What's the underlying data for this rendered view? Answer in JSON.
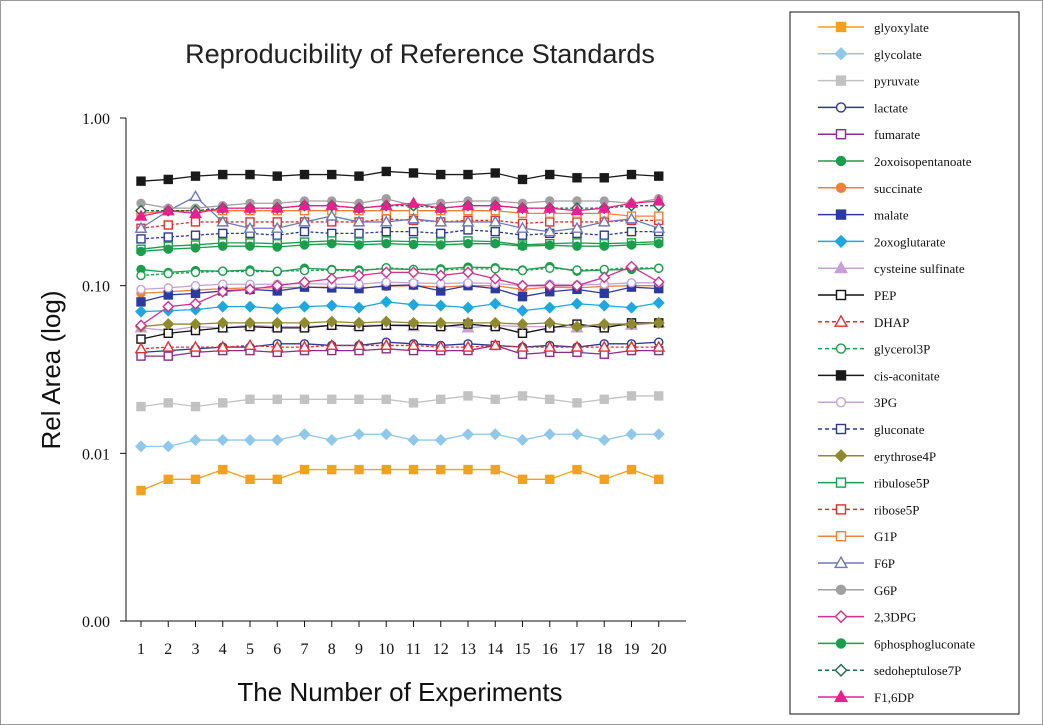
{
  "chart_data": {
    "type": "line",
    "title": "Reproducibility of Reference Standards",
    "xlabel": "The Number of Experiments",
    "ylabel": "Rel Area (log)",
    "y_scale": "log",
    "ylim": [
      0.001,
      1
    ],
    "y_ticks": [
      {
        "value": 1,
        "label": "1.00"
      },
      {
        "value": 0.1,
        "label": "0.10"
      },
      {
        "value": 0.01,
        "label": "0.01"
      },
      {
        "value": 0.001,
        "label": "0.00"
      }
    ],
    "x": [
      1,
      2,
      3,
      4,
      5,
      6,
      7,
      8,
      9,
      10,
      11,
      12,
      13,
      14,
      15,
      16,
      17,
      18,
      19,
      20
    ],
    "x_tick_labels": [
      "1",
      "2",
      "3",
      "4",
      "5",
      "6",
      "7",
      "8",
      "9",
      "10",
      "11",
      "12",
      "13",
      "14",
      "15",
      "16",
      "17",
      "18",
      "19",
      "20"
    ],
    "grid": false,
    "legend_position": "right",
    "series": [
      {
        "name": "glyoxylate",
        "color": "#f4a11f",
        "marker": "square",
        "filled": true,
        "dash": false,
        "values": [
          0.006,
          0.007,
          0.007,
          0.008,
          0.007,
          0.007,
          0.008,
          0.008,
          0.008,
          0.008,
          0.008,
          0.008,
          0.008,
          0.008,
          0.007,
          0.007,
          0.008,
          0.007,
          0.008,
          0.007
        ]
      },
      {
        "name": "glycolate",
        "color": "#8fc8ea",
        "marker": "diamond",
        "filled": true,
        "dash": false,
        "values": [
          0.011,
          0.011,
          0.012,
          0.012,
          0.012,
          0.012,
          0.013,
          0.012,
          0.013,
          0.013,
          0.012,
          0.012,
          0.013,
          0.013,
          0.012,
          0.013,
          0.013,
          0.012,
          0.013,
          0.013
        ]
      },
      {
        "name": "pyruvate",
        "color": "#c2c2c2",
        "marker": "square",
        "filled": true,
        "dash": false,
        "values": [
          0.019,
          0.02,
          0.019,
          0.02,
          0.021,
          0.021,
          0.021,
          0.021,
          0.021,
          0.021,
          0.02,
          0.021,
          0.022,
          0.021,
          0.022,
          0.021,
          0.02,
          0.021,
          0.022,
          0.022
        ]
      },
      {
        "name": "lactate",
        "color": "#2b3990",
        "marker": "circle",
        "filled": false,
        "dash": false,
        "values": [
          0.04,
          0.041,
          0.042,
          0.043,
          0.043,
          0.045,
          0.045,
          0.044,
          0.044,
          0.046,
          0.045,
          0.044,
          0.045,
          0.044,
          0.043,
          0.044,
          0.043,
          0.045,
          0.045,
          0.046
        ]
      },
      {
        "name": "fumarate",
        "color": "#8b2b8b",
        "marker": "square",
        "filled": false,
        "dash": false,
        "values": [
          0.038,
          0.038,
          0.04,
          0.041,
          0.041,
          0.04,
          0.041,
          0.041,
          0.041,
          0.042,
          0.041,
          0.041,
          0.041,
          0.044,
          0.039,
          0.04,
          0.04,
          0.039,
          0.041,
          0.041
        ]
      },
      {
        "name": "2oxoisopentanoate",
        "color": "#1b9e4b",
        "marker": "circle",
        "filled": true,
        "dash": false,
        "values": [
          0.125,
          0.12,
          0.123,
          0.122,
          0.124,
          0.121,
          0.127,
          0.125,
          0.124,
          0.126,
          0.125,
          0.126,
          0.129,
          0.128,
          0.124,
          0.13,
          0.122,
          0.124,
          0.125,
          0.127
        ]
      },
      {
        "name": "succinate",
        "color": "#f1813a",
        "marker": "circle",
        "filled": true,
        "dash": false,
        "values": [
          0.09,
          0.092,
          0.094,
          0.096,
          0.097,
          0.097,
          0.098,
          0.098,
          0.097,
          0.099,
          0.1,
          0.098,
          0.1,
          0.1,
          0.095,
          0.098,
          0.097,
          0.099,
          0.1,
          0.1
        ]
      },
      {
        "name": "malate",
        "color": "#2b3a9e",
        "marker": "square",
        "filled": true,
        "dash": false,
        "values": [
          0.08,
          0.088,
          0.09,
          0.093,
          0.095,
          0.093,
          0.098,
          0.097,
          0.096,
          0.1,
          0.101,
          0.093,
          0.1,
          0.096,
          0.086,
          0.092,
          0.095,
          0.09,
          0.098,
          0.096
        ]
      },
      {
        "name": "2oxoglutarate",
        "color": "#1ea7e0",
        "marker": "diamond",
        "filled": true,
        "dash": false,
        "values": [
          0.07,
          0.071,
          0.072,
          0.075,
          0.075,
          0.073,
          0.075,
          0.076,
          0.074,
          0.08,
          0.077,
          0.076,
          0.074,
          0.078,
          0.071,
          0.074,
          0.078,
          0.076,
          0.074,
          0.079
        ]
      },
      {
        "name": "cysteine sulfinate",
        "color": "#c7a0d6",
        "marker": "triangle",
        "filled": true,
        "dash": false,
        "values": [
          0.056,
          0.054,
          0.057,
          0.056,
          0.058,
          0.057,
          0.057,
          0.058,
          0.058,
          0.058,
          0.057,
          0.058,
          0.056,
          0.058,
          0.057,
          0.057,
          0.056,
          0.058,
          0.058,
          0.06
        ]
      },
      {
        "name": "PEP",
        "color": "#111111",
        "marker": "square",
        "filled": false,
        "dash": false,
        "values": [
          0.048,
          0.052,
          0.054,
          0.056,
          0.057,
          0.056,
          0.056,
          0.058,
          0.057,
          0.058,
          0.058,
          0.057,
          0.059,
          0.057,
          0.052,
          0.056,
          0.059,
          0.056,
          0.06,
          0.06
        ]
      },
      {
        "name": "DHAP",
        "color": "#e52d2d",
        "marker": "triangle",
        "filled": false,
        "dash": true,
        "values": [
          0.042,
          0.043,
          0.043,
          0.043,
          0.044,
          0.043,
          0.043,
          0.044,
          0.044,
          0.044,
          0.044,
          0.043,
          0.043,
          0.044,
          0.043,
          0.043,
          0.043,
          0.043,
          0.043,
          0.043
        ]
      },
      {
        "name": "glycerol3P",
        "color": "#1b9e4b",
        "marker": "circle",
        "filled": false,
        "dash": true,
        "values": [
          0.115,
          0.118,
          0.12,
          0.122,
          0.121,
          0.122,
          0.123,
          0.124,
          0.122,
          0.128,
          0.125,
          0.124,
          0.126,
          0.126,
          0.123,
          0.127,
          0.124,
          0.125,
          0.128,
          0.127
        ]
      },
      {
        "name": "cis-aconitate",
        "color": "#1a1a1a",
        "marker": "square",
        "filled": true,
        "dash": false,
        "values": [
          0.42,
          0.43,
          0.45,
          0.46,
          0.46,
          0.45,
          0.46,
          0.46,
          0.45,
          0.48,
          0.47,
          0.46,
          0.46,
          0.47,
          0.43,
          0.46,
          0.44,
          0.44,
          0.46,
          0.45
        ]
      },
      {
        "name": "3PG",
        "color": "#c4a3d8",
        "marker": "circle",
        "filled": false,
        "dash": false,
        "values": [
          0.095,
          0.097,
          0.1,
          0.102,
          0.102,
          0.102,
          0.103,
          0.102,
          0.102,
          0.105,
          0.104,
          0.103,
          0.104,
          0.103,
          0.1,
          0.102,
          0.101,
          0.102,
          0.104,
          0.104
        ]
      },
      {
        "name": "gluconate",
        "color": "#2b3990",
        "marker": "square",
        "filled": false,
        "dash": true,
        "values": [
          0.19,
          0.195,
          0.2,
          0.205,
          0.205,
          0.2,
          0.21,
          0.205,
          0.205,
          0.21,
          0.21,
          0.205,
          0.215,
          0.21,
          0.2,
          0.205,
          0.205,
          0.2,
          0.21,
          0.21
        ]
      },
      {
        "name": "erythrose4P",
        "color": "#8f8a2e",
        "marker": "diamond",
        "filled": true,
        "dash": false,
        "values": [
          0.057,
          0.059,
          0.059,
          0.06,
          0.06,
          0.06,
          0.06,
          0.061,
          0.06,
          0.061,
          0.06,
          0.06,
          0.06,
          0.06,
          0.059,
          0.06,
          0.057,
          0.059,
          0.059,
          0.06
        ]
      },
      {
        "name": "ribulose5P",
        "color": "#1b9e4b",
        "marker": "square",
        "filled": false,
        "dash": false,
        "values": [
          0.165,
          0.172,
          0.175,
          0.18,
          0.18,
          0.178,
          0.182,
          0.185,
          0.182,
          0.185,
          0.183,
          0.182,
          0.185,
          0.183,
          0.175,
          0.178,
          0.18,
          0.178,
          0.18,
          0.183
        ]
      },
      {
        "name": "ribose5P",
        "color": "#e52d2d",
        "marker": "square",
        "filled": false,
        "dash": true,
        "values": [
          0.22,
          0.23,
          0.24,
          0.24,
          0.24,
          0.24,
          0.24,
          0.24,
          0.24,
          0.25,
          0.245,
          0.24,
          0.245,
          0.245,
          0.235,
          0.24,
          0.24,
          0.24,
          0.245,
          0.245
        ]
      },
      {
        "name": "G1P",
        "color": "#f1813a",
        "marker": "square",
        "filled": false,
        "dash": false,
        "values": [
          0.27,
          0.28,
          0.28,
          0.28,
          0.28,
          0.28,
          0.28,
          0.28,
          0.28,
          0.28,
          0.28,
          0.28,
          0.28,
          0.28,
          0.27,
          0.27,
          0.27,
          0.27,
          0.26,
          0.26
        ]
      },
      {
        "name": "F6P",
        "color": "#6d7ab5",
        "marker": "triangle",
        "filled": false,
        "dash": false,
        "values": [
          0.22,
          0.28,
          0.34,
          0.24,
          0.22,
          0.22,
          0.24,
          0.26,
          0.24,
          0.24,
          0.25,
          0.24,
          0.24,
          0.24,
          0.22,
          0.21,
          0.22,
          0.24,
          0.25,
          0.22
        ]
      },
      {
        "name": "G6P",
        "color": "#a0a0a0",
        "marker": "circle",
        "filled": true,
        "dash": false,
        "values": [
          0.31,
          0.29,
          0.29,
          0.3,
          0.31,
          0.31,
          0.32,
          0.32,
          0.31,
          0.33,
          0.3,
          0.31,
          0.32,
          0.32,
          0.31,
          0.32,
          0.32,
          0.32,
          0.31,
          0.33
        ]
      },
      {
        "name": "2,3DPG",
        "color": "#d42f8e",
        "marker": "diamond",
        "filled": false,
        "dash": false,
        "values": [
          0.058,
          0.075,
          0.078,
          0.092,
          0.095,
          0.1,
          0.105,
          0.11,
          0.115,
          0.12,
          0.12,
          0.115,
          0.12,
          0.11,
          0.1,
          0.1,
          0.1,
          0.112,
          0.13,
          0.105
        ]
      },
      {
        "name": "6phosphogluconate",
        "color": "#1b9e4b",
        "marker": "circle",
        "filled": true,
        "dash": false,
        "values": [
          0.16,
          0.165,
          0.168,
          0.172,
          0.172,
          0.17,
          0.175,
          0.178,
          0.175,
          0.178,
          0.176,
          0.175,
          0.178,
          0.178,
          0.172,
          0.174,
          0.172,
          0.172,
          0.175,
          0.178
        ]
      },
      {
        "name": "sedoheptulose7P",
        "color": "#1f6b4a",
        "marker": "diamond",
        "filled": false,
        "dash": true,
        "values": [
          0.28,
          0.28,
          0.28,
          0.29,
          0.29,
          0.29,
          0.3,
          0.3,
          0.29,
          0.3,
          0.3,
          0.29,
          0.3,
          0.3,
          0.29,
          0.29,
          0.29,
          0.29,
          0.3,
          0.3
        ]
      },
      {
        "name": "F1,6DP",
        "color": "#e8208e",
        "marker": "triangle",
        "filled": true,
        "dash": false,
        "values": [
          0.26,
          0.28,
          0.27,
          0.29,
          0.29,
          0.29,
          0.3,
          0.3,
          0.29,
          0.3,
          0.31,
          0.29,
          0.3,
          0.3,
          0.29,
          0.29,
          0.28,
          0.29,
          0.31,
          0.32
        ]
      }
    ]
  }
}
